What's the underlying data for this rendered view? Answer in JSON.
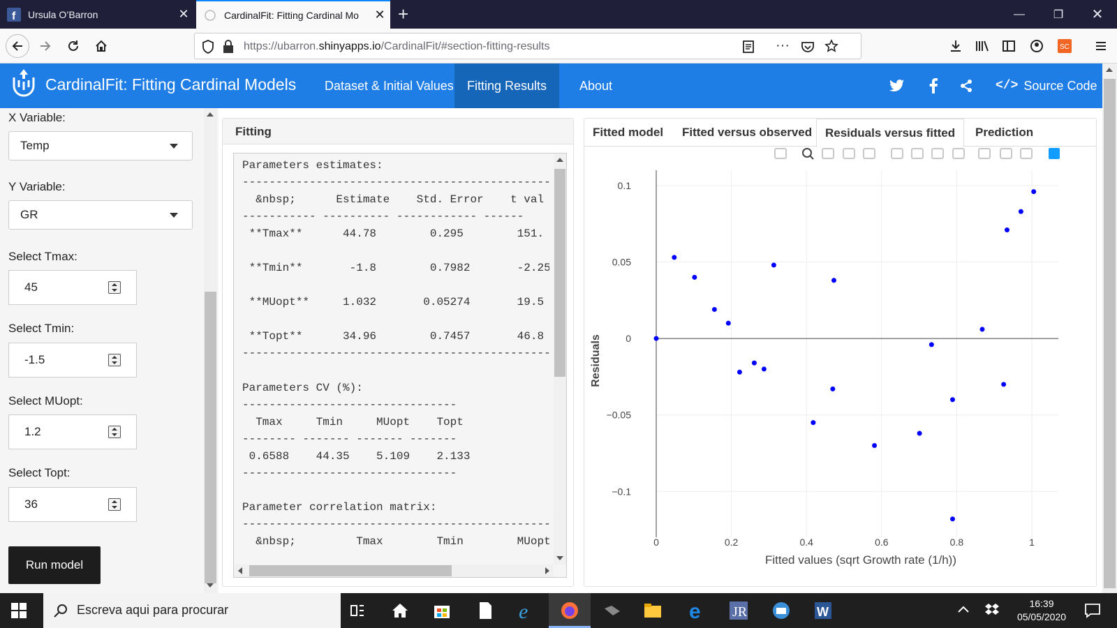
{
  "browser": {
    "tabs": [
      {
        "title": "Ursula O’Barron",
        "active": false
      },
      {
        "title": "CardinalFit: Fitting Cardinal Mo",
        "active": true
      }
    ],
    "url_prefix": "https://ubarron.",
    "url_domain": "shinyapps.io",
    "url_path": "/CardinalFit/#section-fitting-results"
  },
  "app": {
    "title": "CardinalFit: Fitting Cardinal Models",
    "nav": [
      "Dataset & Initial Values",
      "Fitting Results",
      "About"
    ],
    "active_nav": "Fitting Results",
    "source_code": "Source Code",
    "brand_color": "#1f7ee6"
  },
  "sidebar": {
    "x_label": "X Variable:",
    "x_value": "Temp",
    "y_label": "Y Variable:",
    "y_value": "GR",
    "inputs": [
      {
        "label": "Select Tmax:",
        "value": "45"
      },
      {
        "label": "Select Tmin:",
        "value": "-1.5"
      },
      {
        "label": "Select MUopt:",
        "value": "1.2"
      },
      {
        "label": "Select Topt:",
        "value": "36"
      }
    ],
    "run_label": "Run model"
  },
  "fitting": {
    "title": "Fitting",
    "lines": [
      "Parameters estimates:",
      "----------------------------------------------------",
      "  &nbsp;      Estimate    Std. Error    t val",
      "----------- ---------- ------------ ------",
      " **Tmax**      44.78        0.295        151.",
      " **Tmin**       -1.8        0.7982       -2.25",
      " **MUopt**     1.032       0.05274       19.5",
      " **Topt**      34.96        0.7457       46.8",
      "----------------------------------------------------",
      "Parameters CV (%):",
      "--------------------------------",
      "  Tmax     Tmin     MUopt    Topt",
      "-------- ------- ------- -------",
      " 0.6588    44.35    5.109    2.133",
      "--------------------------------",
      "Parameter correlation matrix:",
      "----------------------------------------------------",
      "  &nbsp;         Tmax        Tmin        MUopt"
    ]
  },
  "plot": {
    "tabs": [
      "Fitted model",
      "Fitted versus observed",
      "Residuals versus fitted",
      "Prediction"
    ],
    "active_tab": "Residuals versus fitted",
    "toolbar_icons": [
      "camera-icon",
      "zoom-icon",
      "pan-icon",
      "box-select-icon",
      "lasso-icon",
      "zoom-in-icon",
      "zoom-out-icon",
      "autoscale-icon",
      "reset-axes-icon",
      "spike-lines-icon",
      "hover-closest-icon",
      "hover-compare-icon",
      "plotly-logo-icon"
    ]
  },
  "chart_data": {
    "type": "scatter",
    "xlabel": "Fitted values (sqrt Growth rate (1/h))",
    "ylabel": "Residuals",
    "xlim": [
      0,
      1
    ],
    "ylim": [
      -0.13,
      0.11
    ],
    "xticks": [
      0,
      0.2,
      0.4,
      0.6,
      0.8,
      1
    ],
    "xtick_labels": [
      "0",
      "0.2",
      "0.4",
      "0.6",
      "0.8",
      "1"
    ],
    "yticks": [
      -0.1,
      -0.05,
      0,
      0.05,
      0.1
    ],
    "ytick_labels": [
      "−0.1",
      "−0.05",
      "0",
      "0.05",
      "0.1"
    ],
    "grid": true,
    "marker_color": "#0000ff",
    "points": [
      {
        "x": 0.0,
        "y": 0.0
      },
      {
        "x": 0.048,
        "y": 0.053
      },
      {
        "x": 0.102,
        "y": 0.04
      },
      {
        "x": 0.155,
        "y": 0.019
      },
      {
        "x": 0.192,
        "y": 0.01
      },
      {
        "x": 0.222,
        "y": -0.022
      },
      {
        "x": 0.261,
        "y": -0.016
      },
      {
        "x": 0.287,
        "y": -0.02
      },
      {
        "x": 0.313,
        "y": 0.048
      },
      {
        "x": 0.418,
        "y": -0.055
      },
      {
        "x": 0.47,
        "y": -0.033
      },
      {
        "x": 0.473,
        "y": 0.038
      },
      {
        "x": 0.581,
        "y": -0.07
      },
      {
        "x": 0.701,
        "y": -0.062
      },
      {
        "x": 0.733,
        "y": -0.004
      },
      {
        "x": 0.789,
        "y": -0.04
      },
      {
        "x": 0.789,
        "y": -0.118
      },
      {
        "x": 0.868,
        "y": 0.006
      },
      {
        "x": 0.925,
        "y": -0.03
      },
      {
        "x": 0.934,
        "y": 0.071
      },
      {
        "x": 0.971,
        "y": 0.083
      },
      {
        "x": 1.005,
        "y": 0.096
      }
    ]
  },
  "taskbar": {
    "search_placeholder": "Escreva aqui para procurar",
    "time": "16:39",
    "date": "05/05/2020"
  }
}
